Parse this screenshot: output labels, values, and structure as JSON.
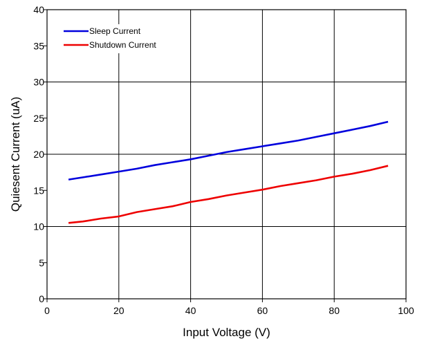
{
  "chart_data": {
    "type": "line",
    "title": "",
    "xlabel": "Input Voltage (V)",
    "ylabel": "Quiesent Current (uA)",
    "xlim": [
      0,
      100
    ],
    "ylim": [
      0,
      40
    ],
    "x_ticks": [
      "0",
      "20",
      "40",
      "60",
      "80",
      "100"
    ],
    "y_ticks": [
      "0",
      "5",
      "10",
      "15",
      "20",
      "25",
      "30",
      "35",
      "40"
    ],
    "grid": true,
    "legend_position": "top-left",
    "series": [
      {
        "name": "Sleep Current",
        "color": "#0000dd",
        "x": [
          6,
          10,
          15,
          20,
          25,
          30,
          35,
          40,
          45,
          50,
          55,
          60,
          65,
          70,
          75,
          80,
          85,
          90,
          95
        ],
        "y": [
          16.5,
          16.8,
          17.2,
          17.6,
          18.0,
          18.5,
          18.9,
          19.3,
          19.8,
          20.3,
          20.7,
          21.1,
          21.5,
          21.9,
          22.4,
          22.9,
          23.4,
          23.9,
          24.5
        ]
      },
      {
        "name": "Shutdown Current",
        "color": "#ee0000",
        "x": [
          6,
          10,
          15,
          20,
          25,
          30,
          35,
          40,
          45,
          50,
          55,
          60,
          65,
          70,
          75,
          80,
          85,
          90,
          95
        ],
        "y": [
          10.5,
          10.7,
          11.1,
          11.4,
          12.0,
          12.4,
          12.8,
          13.4,
          13.8,
          14.3,
          14.7,
          15.1,
          15.6,
          16.0,
          16.4,
          16.9,
          17.3,
          17.8,
          18.4
        ]
      }
    ]
  }
}
